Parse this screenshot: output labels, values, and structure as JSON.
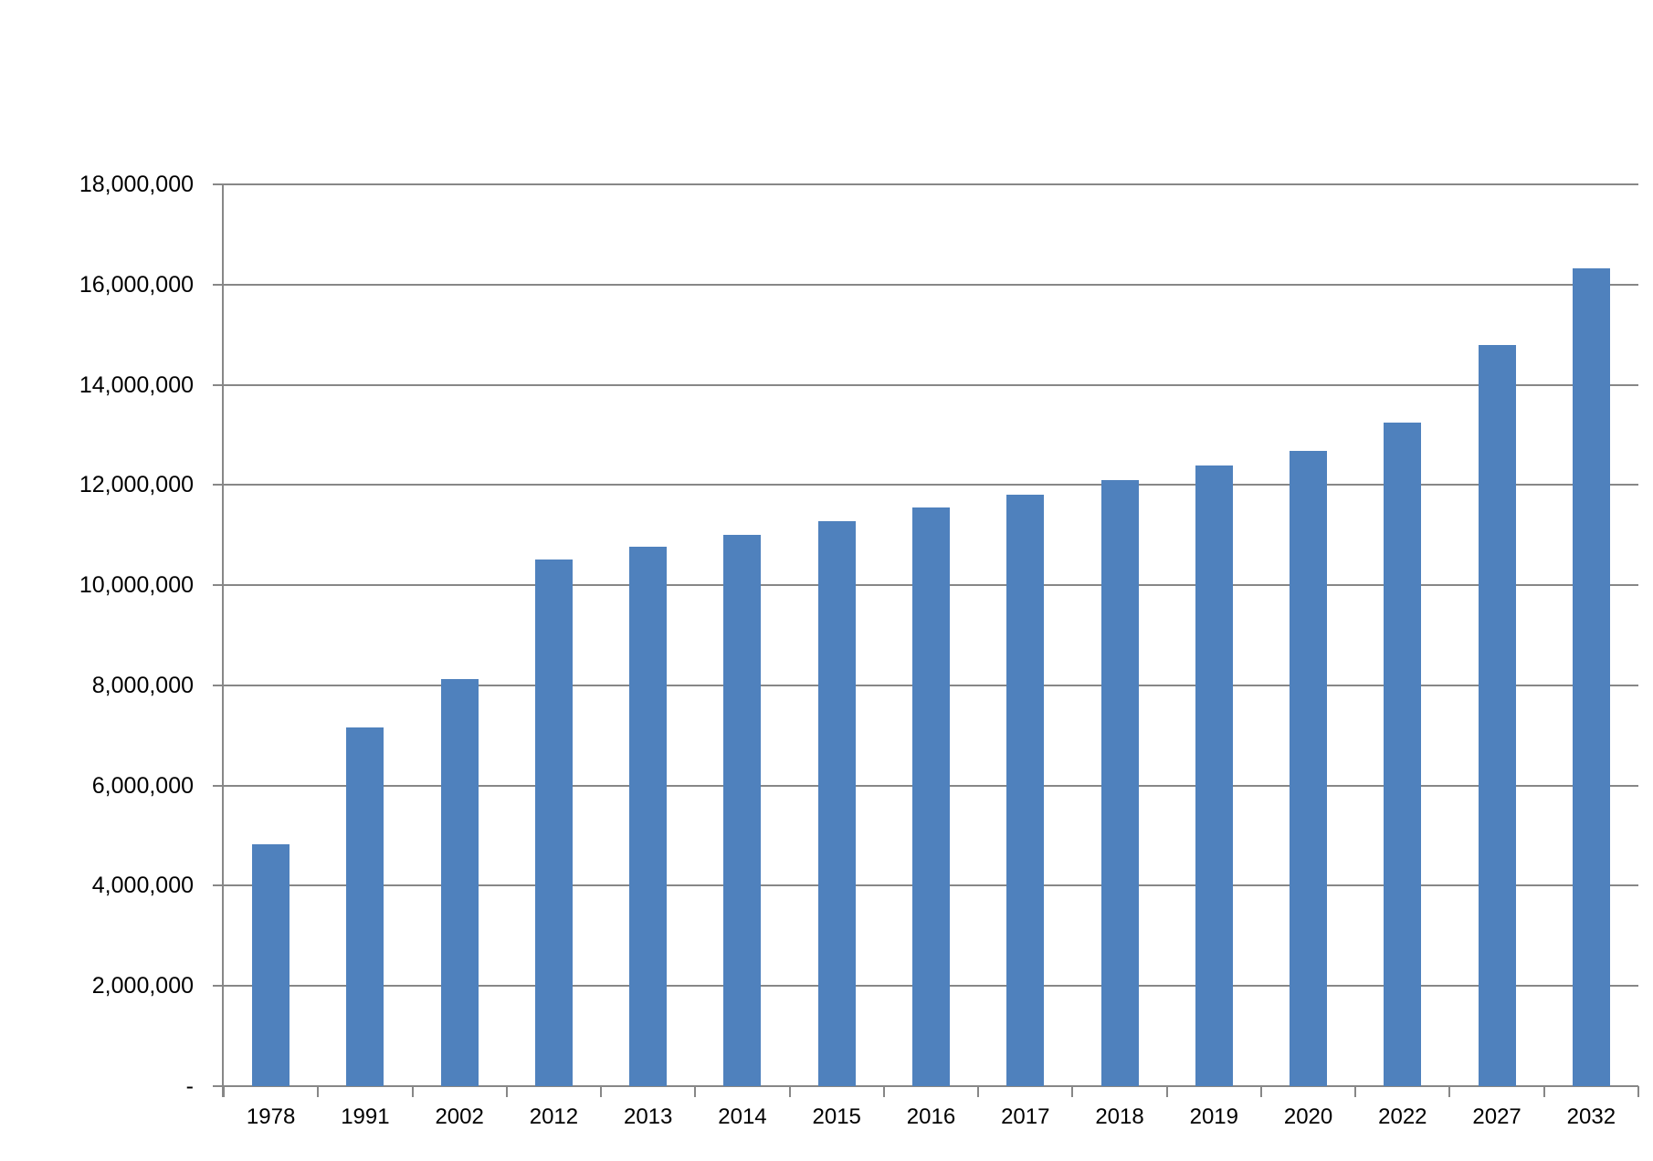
{
  "chart_data": {
    "type": "bar",
    "title": "",
    "xlabel": "",
    "ylabel": "",
    "categories": [
      "1978",
      "1991",
      "2002",
      "2012",
      "2013",
      "2014",
      "2015",
      "2016",
      "2017",
      "2018",
      "2019",
      "2020",
      "2022",
      "2027",
      "2032"
    ],
    "values": [
      4830000,
      7160000,
      8130000,
      10520000,
      10760000,
      11010000,
      11270000,
      11550000,
      11810000,
      12090000,
      12390000,
      12680000,
      13250000,
      14790000,
      16330000
    ],
    "ylim": [
      0,
      18000000
    ],
    "y_tick_step": 2000000,
    "y_ticks": [
      {
        "value": 18000000,
        "label": "18,000,000"
      },
      {
        "value": 16000000,
        "label": "16,000,000"
      },
      {
        "value": 14000000,
        "label": "14,000,000"
      },
      {
        "value": 12000000,
        "label": "12,000,000"
      },
      {
        "value": 10000000,
        "label": "10,000,000"
      },
      {
        "value": 8000000,
        "label": "8,000,000"
      },
      {
        "value": 6000000,
        "label": "6,000,000"
      },
      {
        "value": 4000000,
        "label": "4,000,000"
      },
      {
        "value": 2000000,
        "label": "2,000,000"
      },
      {
        "value": 0,
        "label": "-"
      }
    ],
    "grid": "horizontal-major",
    "legend": "none",
    "colors": {
      "bar": "#4F81BD",
      "gridline": "#878787",
      "axis": "#878787",
      "text": "#000000",
      "background": "#FFFFFF"
    }
  }
}
